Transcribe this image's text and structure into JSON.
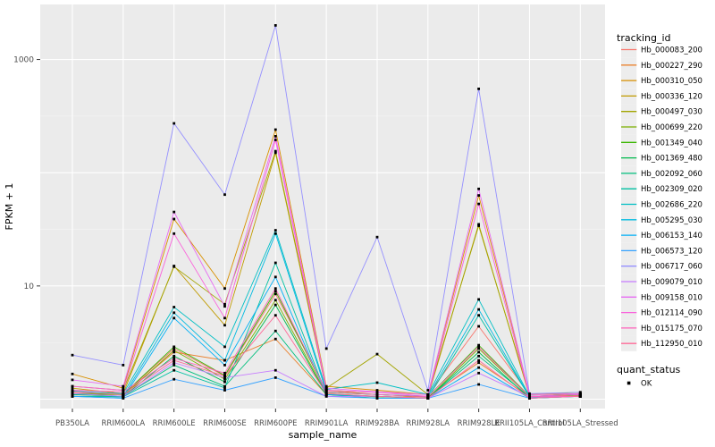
{
  "figure": {
    "background": "#FFFFFF",
    "panel_fill": "#EBEBEB",
    "grid_major_color": "#FFFFFF",
    "grid_minor_color": "#F7F7F7",
    "tick_label_color": "#4D4D4D",
    "tick_mark_color": "#333333",
    "legend_key_fill": "#EDEDED",
    "point_color": "#000000"
  },
  "chart_data": {
    "type": "line",
    "title": "",
    "xlabel": "sample_name",
    "ylabel": "FPKM + 1",
    "y_scale": "log10",
    "y_ticks": [
      10,
      1000
    ],
    "y_tick_labels": [
      "10",
      "1000"
    ],
    "y_gridlines_major": [
      1,
      10,
      100,
      1000
    ],
    "y_gridlines_minor": [
      3.162,
      31.62,
      316.2
    ],
    "ylim": [
      0.85,
      3100
    ],
    "grid": true,
    "legend_position": "right",
    "legend_title": "tracking_id",
    "legend2_title": "quant_status",
    "legend2_items": [
      "OK"
    ],
    "point_shape": "small-black-square",
    "categories": [
      "PB350LA",
      "RRIM600LA",
      "RRIM600LE",
      "RRIM600SE",
      "RRIM600PE",
      "RRIM901LA",
      "RRIM928BA",
      "RRIM928LA",
      "RRIM928LE",
      "RRII105LA_Control",
      "RRII105LA_Stressed"
    ],
    "series": [
      {
        "name": "Hb_000083_200",
        "color": "#F8766D",
        "values": [
          1.15,
          1.1,
          2.8,
          1.6,
          8.5,
          1.2,
          1.15,
          1.1,
          4.4,
          1.1,
          1.1
        ]
      },
      {
        "name": "Hb_000227_290",
        "color": "#EA8331",
        "values": [
          1.1,
          1.1,
          2.6,
          2.2,
          3.4,
          1.1,
          1.05,
          1.05,
          2.1,
          1.05,
          1.08
        ]
      },
      {
        "name": "Hb_000310_050",
        "color": "#D89000",
        "values": [
          1.67,
          1.25,
          39,
          9.5,
          240,
          1.3,
          1.2,
          1.1,
          63,
          1.1,
          1.12
        ]
      },
      {
        "name": "Hb_000336_120",
        "color": "#C09B00",
        "values": [
          1.25,
          1.12,
          15,
          4.5,
          150,
          1.2,
          1.1,
          1.05,
          35,
          1.06,
          1.1
        ]
      },
      {
        "name": "Hb_000497_030",
        "color": "#A3A500",
        "values": [
          1.3,
          1.2,
          14.8,
          6.9,
          155,
          1.25,
          2.5,
          1.1,
          34,
          1.1,
          1.15
        ]
      },
      {
        "name": "Hb_000699_220",
        "color": "#7CAE00",
        "values": [
          1.1,
          1.06,
          2.7,
          1.5,
          7.5,
          1.12,
          1.06,
          1.02,
          2.8,
          1.05,
          1.06
        ]
      },
      {
        "name": "Hb_001349_040",
        "color": "#39B600",
        "values": [
          1.12,
          1.1,
          2.9,
          1.62,
          9.0,
          1.15,
          1.1,
          1.05,
          3.0,
          1.06,
          1.1
        ]
      },
      {
        "name": "Hb_001369_480",
        "color": "#00BB4E",
        "values": [
          1.06,
          1.05,
          2.4,
          1.42,
          6.8,
          1.1,
          1.05,
          1.02,
          2.6,
          1.02,
          1.06
        ]
      },
      {
        "name": "Hb_002092_060",
        "color": "#00BF7D",
        "values": [
          1.1,
          1.06,
          2.0,
          1.3,
          4.0,
          1.1,
          1.02,
          1.02,
          2.4,
          1.05,
          1.06
        ]
      },
      {
        "name": "Hb_002309_020",
        "color": "#00C1A3",
        "values": [
          1.06,
          1.05,
          1.8,
          1.26,
          16,
          1.1,
          1.06,
          1.02,
          5.5,
          1.05,
          1.06
        ]
      },
      {
        "name": "Hb_002686_220",
        "color": "#00BFC4",
        "values": [
          1.18,
          1.12,
          6.5,
          2.9,
          31,
          1.22,
          1.4,
          1.1,
          7.6,
          1.06,
          1.1
        ]
      },
      {
        "name": "Hb_005295_030",
        "color": "#00BAE0",
        "values": [
          1.12,
          1.06,
          5.8,
          2.2,
          29,
          1.16,
          1.1,
          1.06,
          6.2,
          1.05,
          1.06
        ]
      },
      {
        "name": "Hb_006153_140",
        "color": "#00B0F6",
        "values": [
          1.06,
          1.02,
          5.2,
          2.0,
          12,
          1.1,
          1.06,
          1.02,
          1.9,
          1.02,
          1.06
        ]
      },
      {
        "name": "Hb_006573_120",
        "color": "#35A2FF",
        "values": [
          1.06,
          1.02,
          1.5,
          1.2,
          1.55,
          1.06,
          1.02,
          1.02,
          1.35,
          1.02,
          1.06
        ]
      },
      {
        "name": "Hb_006717_060",
        "color": "#9590FF",
        "values": [
          2.45,
          2.0,
          273,
          64,
          2000,
          2.8,
          27,
          1.2,
          550,
          1.12,
          1.15
        ]
      },
      {
        "name": "Hb_009079_010",
        "color": "#C77CFF",
        "values": [
          1.12,
          1.06,
          2.1,
          1.55,
          1.8,
          1.06,
          1.06,
          1.02,
          1.7,
          1.05,
          1.06
        ]
      },
      {
        "name": "Hb_009158_010",
        "color": "#E76BF3",
        "values": [
          1.48,
          1.3,
          45,
          6.6,
          210,
          1.25,
          1.16,
          1.1,
          72,
          1.1,
          1.12
        ]
      },
      {
        "name": "Hb_012114_090",
        "color": "#FA62DB",
        "values": [
          1.3,
          1.2,
          29,
          5.2,
          195,
          1.2,
          1.15,
          1.06,
          53,
          1.06,
          1.1
        ]
      },
      {
        "name": "Hb_015175_070",
        "color": "#FF62BC",
        "values": [
          1.2,
          1.16,
          2.3,
          1.7,
          9.5,
          1.16,
          1.1,
          1.05,
          2.9,
          1.05,
          1.06
        ]
      },
      {
        "name": "Hb_112950_010",
        "color": "#FF6A98",
        "values": [
          1.16,
          1.1,
          2.2,
          1.6,
          5.5,
          1.12,
          1.06,
          1.02,
          2.2,
          1.02,
          1.06
        ]
      }
    ]
  }
}
